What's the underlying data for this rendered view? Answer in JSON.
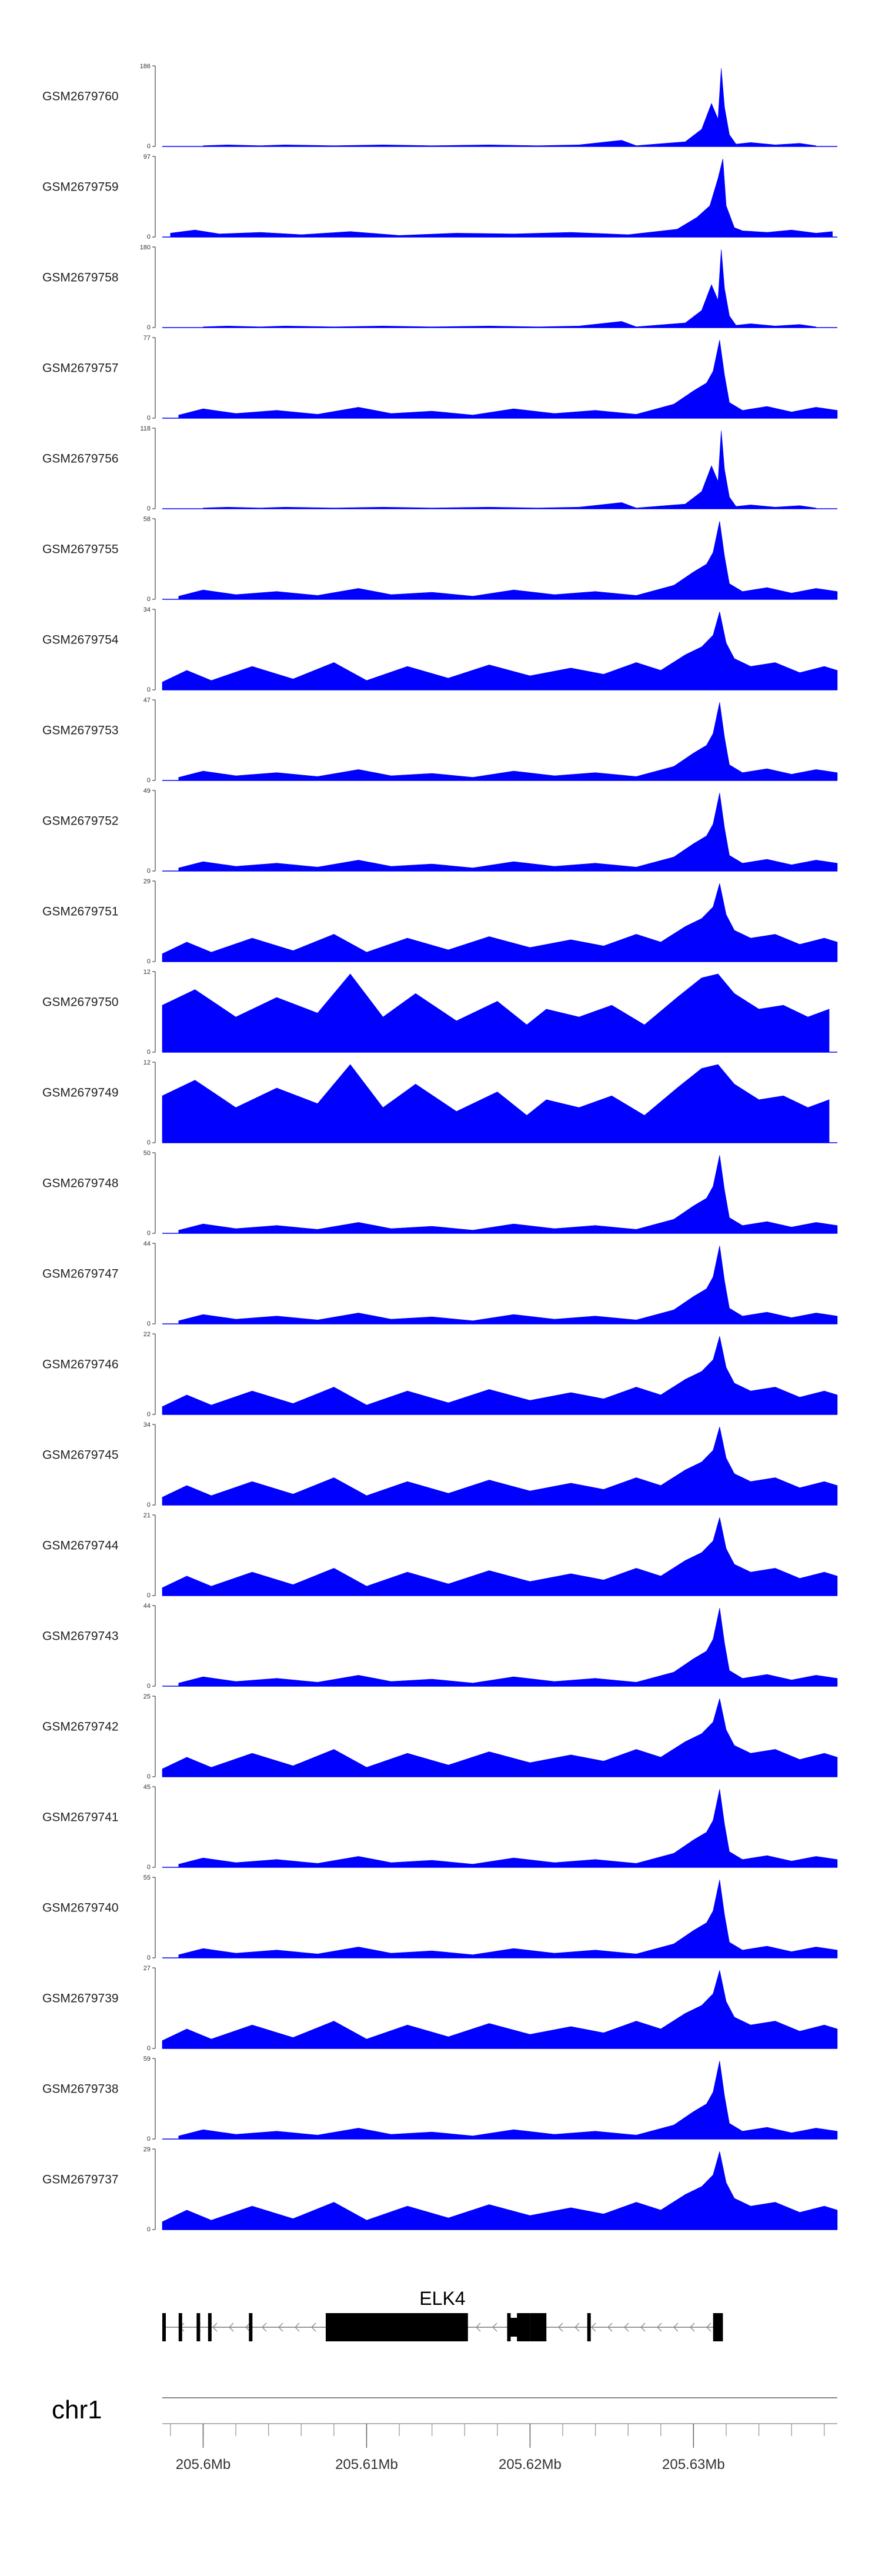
{
  "chart_data": {
    "type": "area",
    "title": "",
    "xlabel": "",
    "chromosome": "chr1",
    "xlim": [
      205.5975,
      205.6388
    ],
    "x_ticks": [
      {
        "value": 205.6,
        "label": "205.6Mb"
      },
      {
        "value": 205.61,
        "label": "205.61Mb"
      },
      {
        "value": 205.62,
        "label": "205.62Mb"
      },
      {
        "value": 205.63,
        "label": "205.63Mb"
      }
    ],
    "gene": {
      "name": "ELK4",
      "strand": "-",
      "start": 205.5975,
      "end": 205.6318,
      "exons": [
        {
          "start": 205.5975,
          "end": 205.5977
        },
        {
          "start": 205.5985,
          "end": 205.5987
        },
        {
          "start": 205.5996,
          "end": 205.5998
        },
        {
          "start": 205.6003,
          "end": 205.6005
        },
        {
          "start": 205.6028,
          "end": 205.603
        },
        {
          "start": 205.6075,
          "end": 205.6162
        },
        {
          "start": 205.6186,
          "end": 205.6188
        },
        {
          "start": 205.6192,
          "end": 205.62
        },
        {
          "start": 205.62,
          "end": 205.621
        },
        {
          "start": 205.6235,
          "end": 205.6237
        },
        {
          "start": 205.6312,
          "end": 205.6318
        }
      ],
      "utr_exons": [
        {
          "start": 205.6186,
          "end": 205.6198
        }
      ]
    },
    "tracks": [
      {
        "name": "GSM2679760",
        "ymax": 186,
        "ymax_label": "186",
        "series": "a"
      },
      {
        "name": "GSM2679759",
        "ymax": 97,
        "ymax_label": "97",
        "series": "b"
      },
      {
        "name": "GSM2679758",
        "ymax": 180,
        "ymax_label": "180",
        "series": "a"
      },
      {
        "name": "GSM2679757",
        "ymax": 77,
        "ymax_label": "77",
        "series": "c"
      },
      {
        "name": "GSM2679756",
        "ymax": 118,
        "ymax_label": "118",
        "series": "a"
      },
      {
        "name": "GSM2679755",
        "ymax": 58,
        "ymax_label": "58",
        "series": "c"
      },
      {
        "name": "GSM2679754",
        "ymax": 34,
        "ymax_label": "34",
        "series": "d"
      },
      {
        "name": "GSM2679753",
        "ymax": 47,
        "ymax_label": "47",
        "series": "c"
      },
      {
        "name": "GSM2679752",
        "ymax": 49,
        "ymax_label": "49",
        "series": "c"
      },
      {
        "name": "GSM2679751",
        "ymax": 29,
        "ymax_label": "29",
        "series": "d"
      },
      {
        "name": "GSM2679750",
        "ymax": 12,
        "ymax_label": "12",
        "series": "e"
      },
      {
        "name": "GSM2679749",
        "ymax": 12,
        "ymax_label": "12",
        "series": "e"
      },
      {
        "name": "GSM2679748",
        "ymax": 50,
        "ymax_label": "50",
        "series": "c"
      },
      {
        "name": "GSM2679747",
        "ymax": 44,
        "ymax_label": "44",
        "series": "c"
      },
      {
        "name": "GSM2679746",
        "ymax": 22,
        "ymax_label": "22",
        "series": "d"
      },
      {
        "name": "GSM2679745",
        "ymax": 34,
        "ymax_label": "34",
        "series": "d"
      },
      {
        "name": "GSM2679744",
        "ymax": 21,
        "ymax_label": "21",
        "series": "d"
      },
      {
        "name": "GSM2679743",
        "ymax": 44,
        "ymax_label": "44",
        "series": "c"
      },
      {
        "name": "GSM2679742",
        "ymax": 25,
        "ymax_label": "25",
        "series": "d"
      },
      {
        "name": "GSM2679741",
        "ymax": 45,
        "ymax_label": "45",
        "series": "c"
      },
      {
        "name": "GSM2679740",
        "ymax": 55,
        "ymax_label": "55",
        "series": "c"
      },
      {
        "name": "GSM2679739",
        "ymax": 27,
        "ymax_label": "27",
        "series": "d"
      },
      {
        "name": "GSM2679738",
        "ymax": 59,
        "ymax_label": "59",
        "series": "c"
      },
      {
        "name": "GSM2679737",
        "ymax": 29,
        "ymax_label": "29",
        "series": "d"
      }
    ],
    "series": {
      "a": [
        [
          205.6,
          1
        ],
        [
          205.6015,
          2
        ],
        [
          205.6035,
          1
        ],
        [
          205.605,
          2
        ],
        [
          205.608,
          1
        ],
        [
          205.611,
          2
        ],
        [
          205.614,
          1
        ],
        [
          205.6175,
          2
        ],
        [
          205.6205,
          1
        ],
        [
          205.623,
          2
        ],
        [
          205.6256,
          8
        ],
        [
          205.6265,
          1
        ],
        [
          205.6295,
          6
        ],
        [
          205.6305,
          22
        ],
        [
          205.6311,
          55
        ],
        [
          205.6315,
          35
        ],
        [
          205.6317,
          100
        ],
        [
          205.6319,
          50
        ],
        [
          205.6322,
          15
        ],
        [
          205.6326,
          3
        ],
        [
          205.6335,
          5
        ],
        [
          205.635,
          2
        ],
        [
          205.6365,
          4
        ],
        [
          205.6375,
          1
        ]
      ],
      "b": [
        [
          205.598,
          5
        ],
        [
          205.5995,
          9
        ],
        [
          205.601,
          4
        ],
        [
          205.6035,
          6
        ],
        [
          205.606,
          3
        ],
        [
          205.609,
          7
        ],
        [
          205.612,
          2
        ],
        [
          205.6155,
          5
        ],
        [
          205.619,
          4
        ],
        [
          205.6225,
          6
        ],
        [
          205.626,
          3
        ],
        [
          205.629,
          10
        ],
        [
          205.6302,
          25
        ],
        [
          205.631,
          40
        ],
        [
          205.6315,
          75
        ],
        [
          205.6318,
          100
        ],
        [
          205.632,
          40
        ],
        [
          205.6325,
          12
        ],
        [
          205.633,
          8
        ],
        [
          205.6345,
          6
        ],
        [
          205.636,
          9
        ],
        [
          205.6375,
          5
        ],
        [
          205.6385,
          7
        ]
      ],
      "c": [
        [
          205.5985,
          4
        ],
        [
          205.6,
          12
        ],
        [
          205.602,
          6
        ],
        [
          205.6045,
          10
        ],
        [
          205.607,
          5
        ],
        [
          205.6095,
          14
        ],
        [
          205.6115,
          6
        ],
        [
          205.614,
          9
        ],
        [
          205.6165,
          4
        ],
        [
          205.619,
          12
        ],
        [
          205.6215,
          6
        ],
        [
          205.624,
          10
        ],
        [
          205.6265,
          5
        ],
        [
          205.6288,
          18
        ],
        [
          205.63,
          35
        ],
        [
          205.6308,
          45
        ],
        [
          205.6312,
          60
        ],
        [
          205.6316,
          100
        ],
        [
          205.6319,
          55
        ],
        [
          205.6322,
          20
        ],
        [
          205.633,
          10
        ],
        [
          205.6345,
          15
        ],
        [
          205.636,
          8
        ],
        [
          205.6375,
          14
        ],
        [
          205.6388,
          10
        ]
      ],
      "d": [
        [
          205.5975,
          10
        ],
        [
          205.599,
          25
        ],
        [
          205.6005,
          12
        ],
        [
          205.603,
          30
        ],
        [
          205.6055,
          14
        ],
        [
          205.608,
          35
        ],
        [
          205.61,
          12
        ],
        [
          205.6125,
          30
        ],
        [
          205.615,
          15
        ],
        [
          205.6175,
          32
        ],
        [
          205.62,
          18
        ],
        [
          205.6225,
          28
        ],
        [
          205.6245,
          20
        ],
        [
          205.6265,
          35
        ],
        [
          205.628,
          25
        ],
        [
          205.6295,
          45
        ],
        [
          205.6305,
          55
        ],
        [
          205.6312,
          70
        ],
        [
          205.6316,
          100
        ],
        [
          205.632,
          60
        ],
        [
          205.6325,
          40
        ],
        [
          205.6335,
          30
        ],
        [
          205.635,
          35
        ],
        [
          205.6365,
          22
        ],
        [
          205.638,
          30
        ],
        [
          205.6388,
          25
        ]
      ],
      "e": [
        [
          205.5975,
          60
        ],
        [
          205.5995,
          80
        ],
        [
          205.602,
          45
        ],
        [
          205.6045,
          70
        ],
        [
          205.607,
          50
        ],
        [
          205.609,
          100
        ],
        [
          205.611,
          45
        ],
        [
          205.613,
          75
        ],
        [
          205.6155,
          40
        ],
        [
          205.618,
          65
        ],
        [
          205.6198,
          35
        ],
        [
          205.621,
          55
        ],
        [
          205.623,
          45
        ],
        [
          205.625,
          60
        ],
        [
          205.627,
          35
        ],
        [
          205.629,
          70
        ],
        [
          205.6305,
          95
        ],
        [
          205.6315,
          100
        ],
        [
          205.6325,
          75
        ],
        [
          205.634,
          55
        ],
        [
          205.6355,
          60
        ],
        [
          205.637,
          45
        ],
        [
          205.6383,
          55
        ]
      ]
    }
  }
}
